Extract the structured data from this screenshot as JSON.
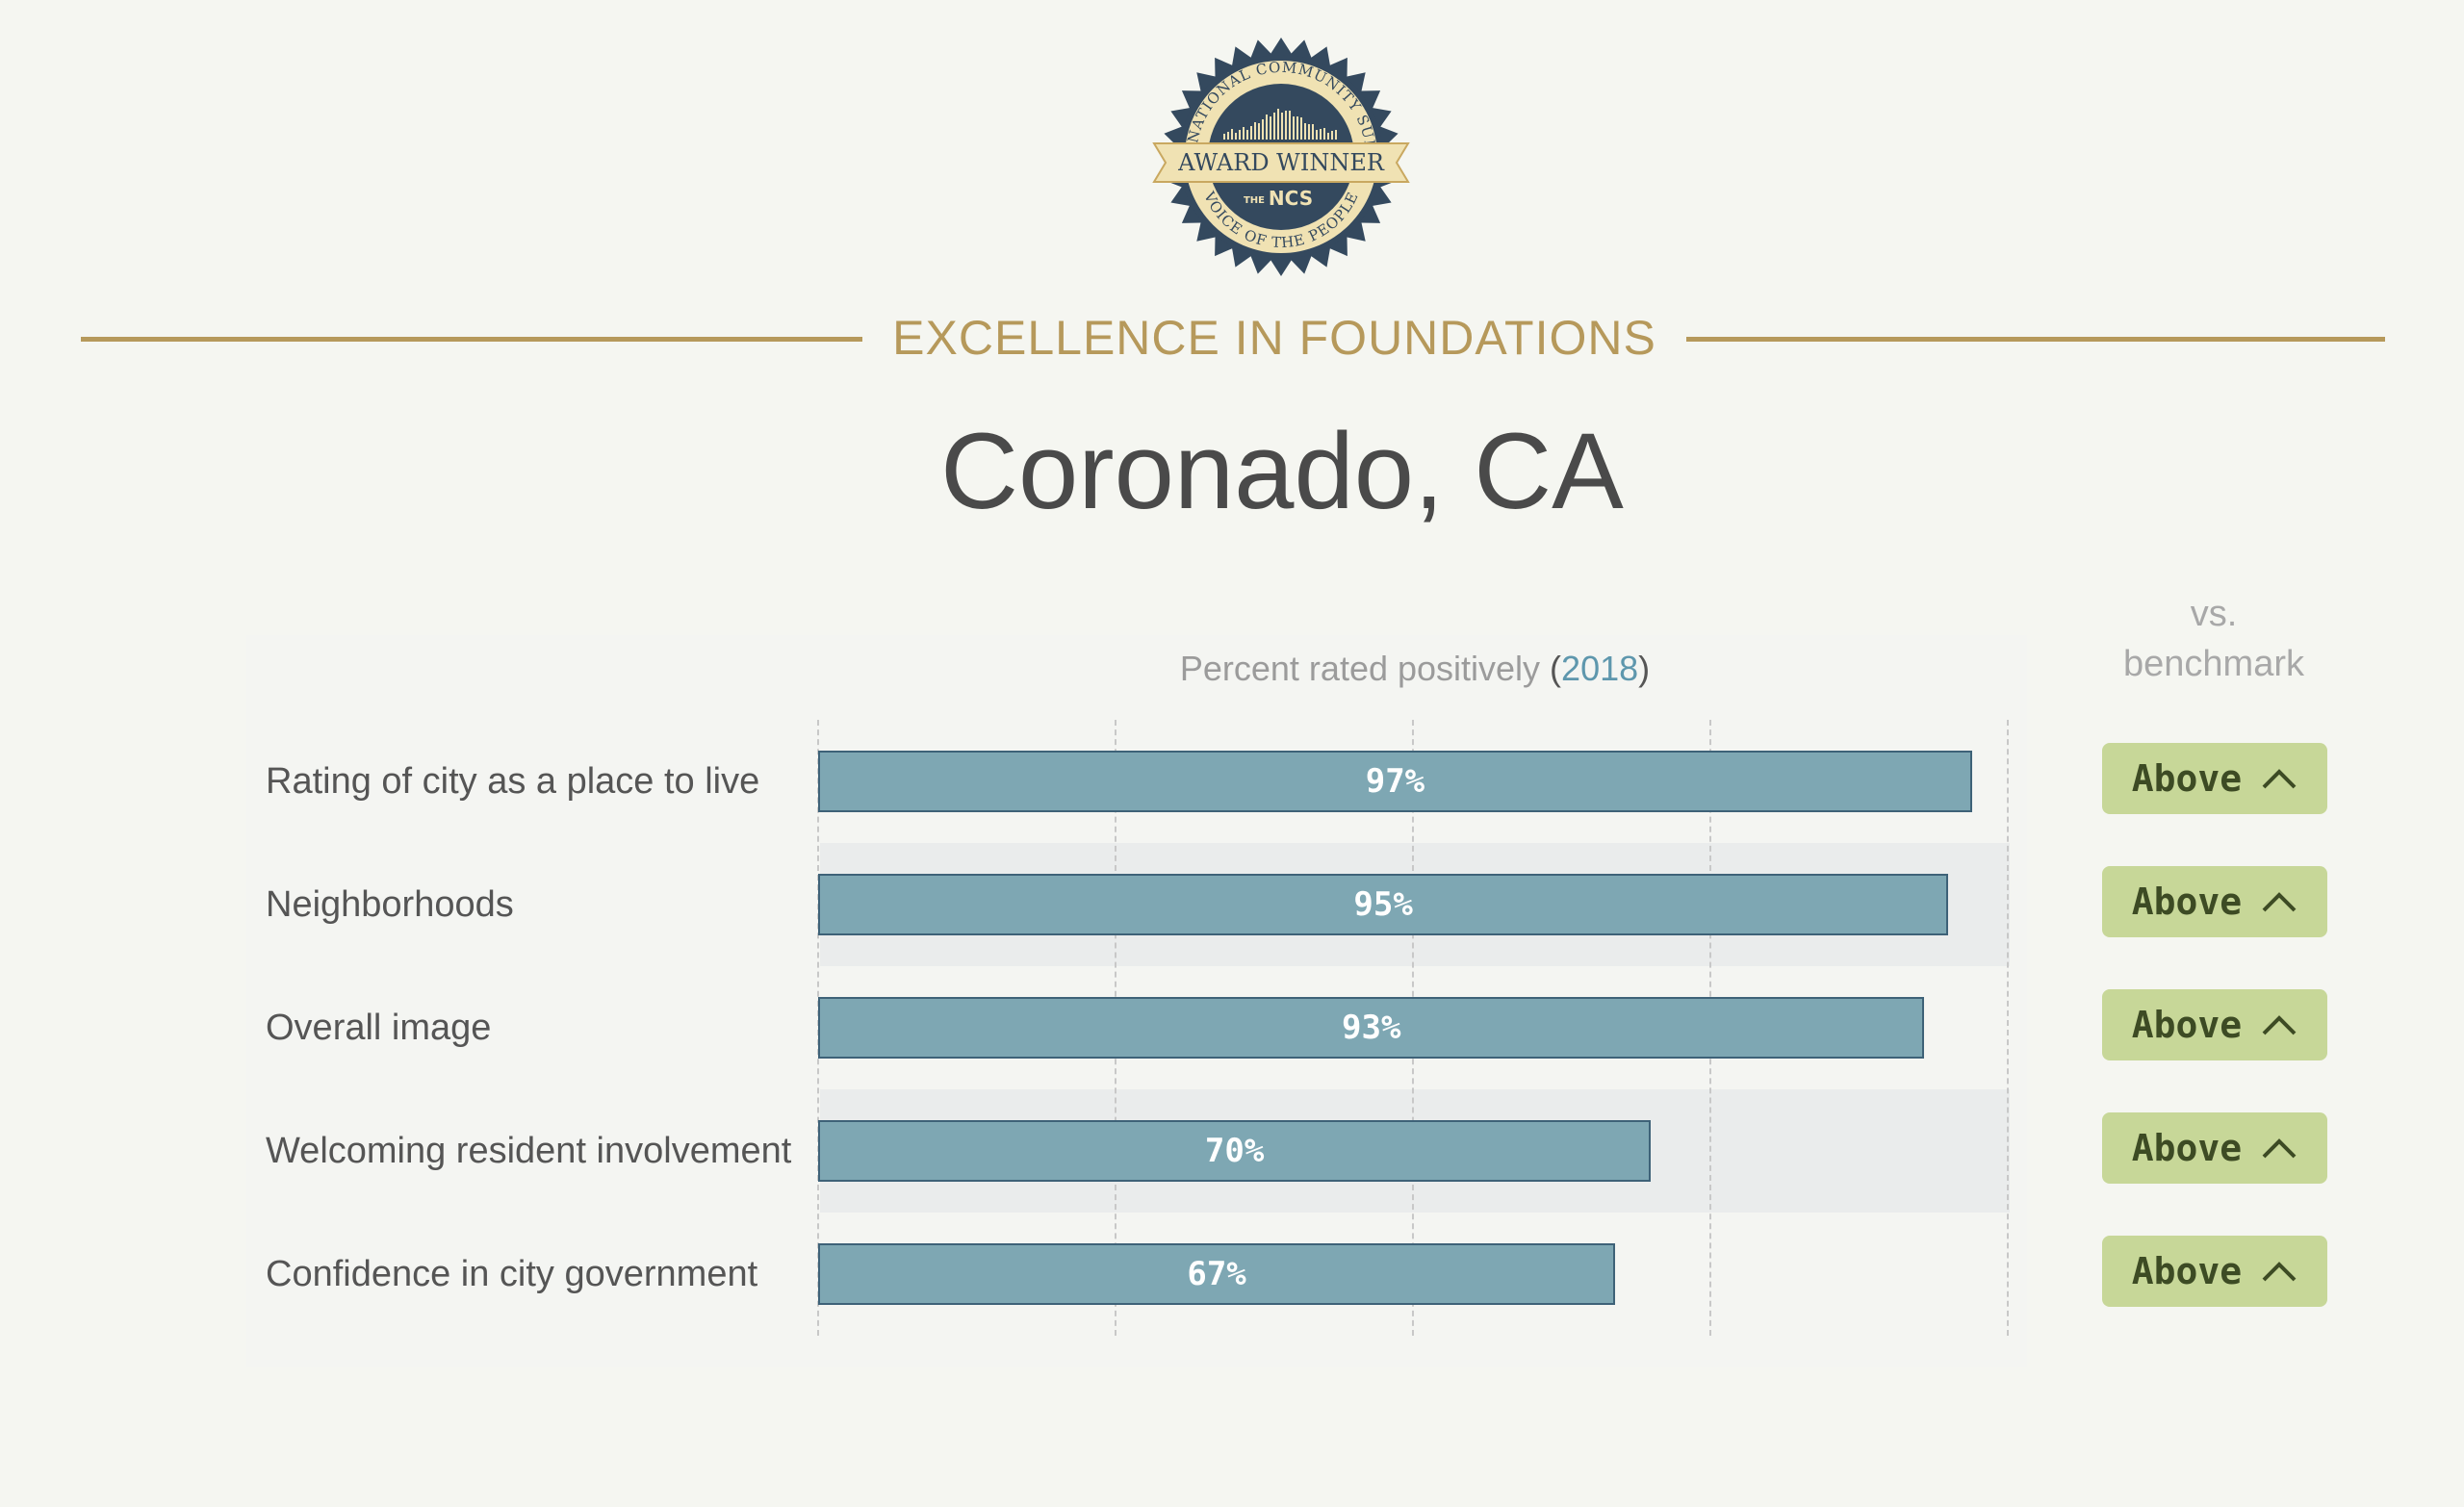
{
  "seal": {
    "arc_top": "THE NATIONAL COMMUNITY SURVEY",
    "ribbon": "AWARD WINNER",
    "mark": "NCS",
    "mark_prefix": "THE",
    "arc_bottom": "VOICE OF THE PEOPLE"
  },
  "header": {
    "award_title": "EXCELLENCE IN FOUNDATIONS",
    "city": "Coronado, CA"
  },
  "chart_data": {
    "type": "bar",
    "orientation": "horizontal",
    "title": "Percent rated positively (2018)",
    "year": "2018",
    "categories": [
      "Rating of city as a place to live",
      "Neighborhoods",
      "Overall image",
      "Welcoming resident involvement",
      "Confidence in city government"
    ],
    "values": [
      97,
      95,
      93,
      70,
      67
    ],
    "value_labels": [
      "97%",
      "95%",
      "93%",
      "70%",
      "67%"
    ],
    "xlim": [
      0,
      100
    ],
    "gridlines": [
      0,
      25,
      50,
      75,
      100
    ],
    "bar_color": "#7ea7b3",
    "benchmark_header": [
      "vs.",
      "benchmark"
    ],
    "benchmark": [
      "Above",
      "Above",
      "Above",
      "Above",
      "Above"
    ],
    "benchmark_color": "#c7d798"
  }
}
